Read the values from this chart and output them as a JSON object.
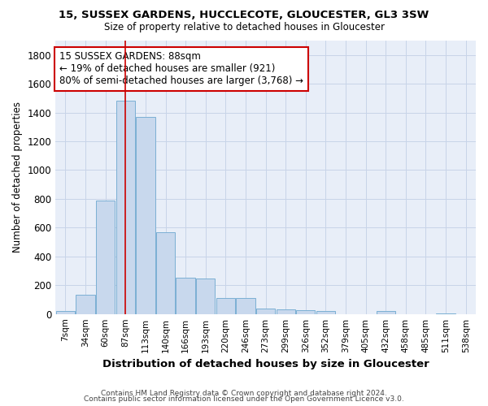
{
  "title1": "15, SUSSEX GARDENS, HUCCLECOTE, GLOUCESTER, GL3 3SW",
  "title2": "Size of property relative to detached houses in Gloucester",
  "xlabel": "Distribution of detached houses by size in Gloucester",
  "ylabel": "Number of detached properties",
  "bar_labels": [
    "7sqm",
    "34sqm",
    "60sqm",
    "87sqm",
    "113sqm",
    "140sqm",
    "166sqm",
    "193sqm",
    "220sqm",
    "246sqm",
    "273sqm",
    "299sqm",
    "326sqm",
    "352sqm",
    "379sqm",
    "405sqm",
    "432sqm",
    "458sqm",
    "485sqm",
    "511sqm",
    "538sqm"
  ],
  "bar_heights": [
    20,
    135,
    790,
    1480,
    1370,
    570,
    250,
    245,
    110,
    110,
    35,
    30,
    25,
    20,
    0,
    0,
    20,
    0,
    0,
    5,
    0
  ],
  "bar_color": "#c8d8ed",
  "bar_edge_color": "#7bafd4",
  "grid_color": "#c8d4e8",
  "bg_color": "#e8eef8",
  "red_line_x": 3.0,
  "annotation_text": "15 SUSSEX GARDENS: 88sqm\n← 19% of detached houses are smaller (921)\n80% of semi-detached houses are larger (3,768) →",
  "annotation_box_color": "#ffffff",
  "annotation_border_color": "#cc0000",
  "footer1": "Contains HM Land Registry data © Crown copyright and database right 2024.",
  "footer2": "Contains public sector information licensed under the Open Government Licence v3.0.",
  "ylim": [
    0,
    1900
  ],
  "yticks": [
    0,
    200,
    400,
    600,
    800,
    1000,
    1200,
    1400,
    1600,
    1800
  ]
}
